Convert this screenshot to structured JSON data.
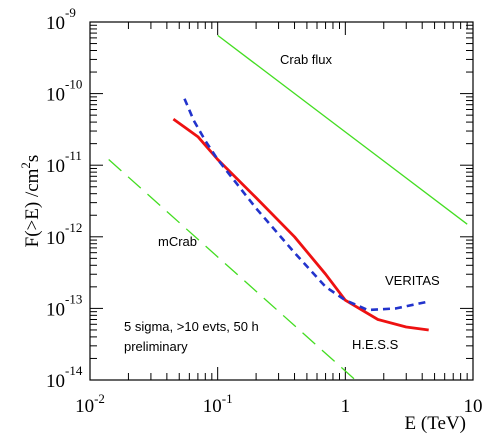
{
  "chart_data": {
    "type": "line",
    "title": "",
    "xlabel": "E (TeV)",
    "ylabel": "F(>E) /cm",
    "ylabel_sup": "2",
    "ylabel_suffix": "s",
    "x_scale": "log",
    "y_scale": "log",
    "xlim": [
      0.01,
      10
    ],
    "ylim": [
      1e-14,
      1e-09
    ],
    "grid": false,
    "x_ticks": [
      {
        "value": 0.01,
        "base": "10",
        "exp": "-2"
      },
      {
        "value": 0.1,
        "base": "10",
        "exp": "-1"
      },
      {
        "value": 1,
        "base": "1",
        "exp": ""
      },
      {
        "value": 10,
        "base": "10",
        "exp": ""
      }
    ],
    "y_ticks": [
      {
        "value": 1e-09,
        "base": "10",
        "exp": "-9"
      },
      {
        "value": 1e-10,
        "base": "10",
        "exp": "-10"
      },
      {
        "value": 1e-11,
        "base": "10",
        "exp": "-11"
      },
      {
        "value": 1e-12,
        "base": "10",
        "exp": "-12"
      },
      {
        "value": 1e-13,
        "base": "10",
        "exp": "-13"
      },
      {
        "value": 1e-14,
        "base": "10",
        "exp": "-14"
      }
    ],
    "series": [
      {
        "name": "Crab flux",
        "color": "#44dd22",
        "dash": "solid",
        "points": [
          [
            0.1,
            6.5e-10
          ],
          [
            9.0,
            1.5e-12
          ]
        ]
      },
      {
        "name": "mCrab",
        "color": "#44dd22",
        "dash": "long-dash",
        "points": [
          [
            0.014,
            1.2e-11
          ],
          [
            1.2,
            1e-14
          ]
        ]
      },
      {
        "name": "H.E.S.S",
        "color": "#ee1111",
        "dash": "solid",
        "points": [
          [
            0.045,
            4.4e-11
          ],
          [
            0.07,
            2.5e-11
          ],
          [
            0.1,
            1.2e-11
          ],
          [
            0.2,
            3.5e-12
          ],
          [
            0.4,
            1e-12
          ],
          [
            0.7,
            3e-13
          ],
          [
            1.0,
            1.3e-13
          ],
          [
            1.8,
            7e-14
          ],
          [
            3.0,
            5.5e-14
          ],
          [
            4.5,
            5e-14
          ]
        ]
      },
      {
        "name": "VERITAS",
        "color": "#2233cc",
        "dash": "short-dash",
        "points": [
          [
            0.055,
            8.5e-11
          ],
          [
            0.065,
            4.2e-11
          ],
          [
            0.08,
            2.2e-11
          ],
          [
            0.1,
            1.2e-11
          ],
          [
            0.2,
            2.5e-12
          ],
          [
            0.4,
            6e-13
          ],
          [
            0.7,
            2e-13
          ],
          [
            1.0,
            1.3e-13
          ],
          [
            1.5,
            9.5e-14
          ],
          [
            2.5,
            1e-13
          ],
          [
            4.5,
            1.25e-13
          ]
        ]
      }
    ],
    "annotations": [
      {
        "id": "crab",
        "text": "Crab flux"
      },
      {
        "id": "mcrab",
        "text": "mCrab"
      },
      {
        "id": "veritas",
        "text": "VERITAS"
      },
      {
        "id": "hess",
        "text": "H.E.S.S"
      },
      {
        "id": "note1",
        "text": "5 sigma, >10 evts, 50 h"
      },
      {
        "id": "note2",
        "text": "preliminary"
      }
    ]
  }
}
